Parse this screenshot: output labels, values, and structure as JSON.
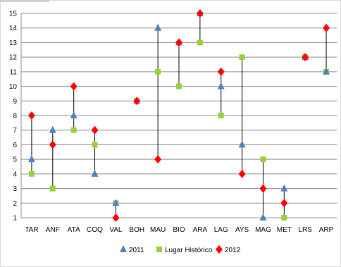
{
  "chart_data": {
    "type": "scatter",
    "title": "",
    "xlabel": "",
    "ylabel": "",
    "ylim": [
      1,
      15
    ],
    "grid": true,
    "legend_position": "bottom",
    "categories": [
      "TAR",
      "ANF",
      "ATA",
      "COQ",
      "VAL",
      "BOH",
      "MAU",
      "BIO",
      "ARA",
      "LAG",
      "AYS",
      "MAG",
      "MET",
      "LRS",
      "ARP"
    ],
    "yticks": [
      1,
      2,
      3,
      4,
      5,
      6,
      7,
      8,
      9,
      10,
      11,
      12,
      13,
      14,
      15
    ],
    "series": [
      {
        "name": "2011",
        "marker": "triangle",
        "color": "#4f81bd",
        "values": [
          5,
          7,
          8,
          4,
          2,
          9,
          14,
          13,
          15,
          10,
          6,
          1,
          3,
          12,
          11
        ]
      },
      {
        "name": "Lugar Histórico",
        "marker": "square",
        "color": "#9bcf3a",
        "values": [
          4,
          3,
          7,
          6,
          2,
          9,
          11,
          10,
          13,
          8,
          12,
          5,
          1,
          12,
          11
        ]
      },
      {
        "name": "2012",
        "marker": "diamond",
        "color": "#ff0000",
        "values": [
          8,
          6,
          10,
          7,
          1,
          9,
          5,
          13,
          15,
          11,
          4,
          3,
          2,
          12,
          14
        ]
      }
    ]
  }
}
